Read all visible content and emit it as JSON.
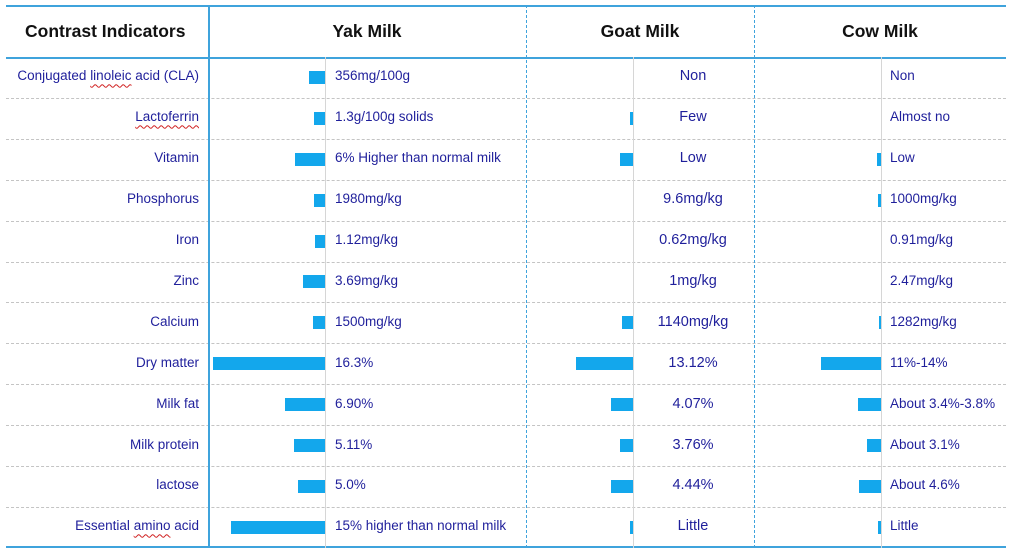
{
  "header": {
    "indicator": "Contrast Indicators",
    "yak": "Yak Milk",
    "goat": "Goat Milk",
    "cow": "Cow Milk"
  },
  "colors": {
    "bar": "#13a7ec",
    "border": "#3fa3dc",
    "text": "#1f1f9b"
  },
  "rows": [
    {
      "label": "Conjugated linoleic acid (CLA)",
      "underline": "linoleic",
      "yak": {
        "text": "356mg/100g",
        "bar": 0.14
      },
      "goat": {
        "text": "Non",
        "bar": 0
      },
      "cow": {
        "text": "Non",
        "bar": 0
      }
    },
    {
      "label": "Lactoferrin",
      "underline": "Lactoferrin",
      "yak": {
        "text": "1.3g/100g solids",
        "bar": 0.1
      },
      "goat": {
        "text": "Few",
        "bar": 0.05
      },
      "cow": {
        "text": "Almost no",
        "bar": 0
      }
    },
    {
      "label": "Vitamin",
      "underline": "",
      "yak": {
        "text": "6% Higher than normal milk",
        "bar": 0.27
      },
      "goat": {
        "text": "Low",
        "bar": 0.23
      },
      "cow": {
        "text": "Low",
        "bar": 0.07
      }
    },
    {
      "label": "Phosphorus",
      "underline": "",
      "yak": {
        "text": "1980mg/kg",
        "bar": 0.1
      },
      "goat": {
        "text": "9.6mg/kg",
        "bar": 0
      },
      "cow": {
        "text": "1000mg/kg",
        "bar": 0.05
      }
    },
    {
      "label": "Iron",
      "underline": "",
      "yak": {
        "text": "1.12mg/kg",
        "bar": 0.09
      },
      "goat": {
        "text": "0.62mg/kg",
        "bar": 0
      },
      "cow": {
        "text": "0.91mg/kg",
        "bar": 0
      }
    },
    {
      "label": "Zinc",
      "underline": "",
      "yak": {
        "text": "3.69mg/kg",
        "bar": 0.2
      },
      "goat": {
        "text": "1mg/kg",
        "bar": 0
      },
      "cow": {
        "text": "2.47mg/kg",
        "bar": 0
      }
    },
    {
      "label": "Calcium",
      "underline": "",
      "yak": {
        "text": "1500mg/kg",
        "bar": 0.11
      },
      "goat": {
        "text": "1140mg/kg",
        "bar": 0.19
      },
      "cow": {
        "text": "1282mg/kg",
        "bar": 0.02
      }
    },
    {
      "label": "Dry matter",
      "underline": "",
      "yak": {
        "text": "16.3%",
        "bar": 1.0
      },
      "goat": {
        "text": "13.12%",
        "bar": 1.0
      },
      "cow": {
        "text": "11%-14%",
        "bar": 1.0
      }
    },
    {
      "label": "Milk fat",
      "underline": "",
      "yak": {
        "text": "6.90%",
        "bar": 0.36
      },
      "goat": {
        "text": "4.07%",
        "bar": 0.38
      },
      "cow": {
        "text": "About 3.4%-3.8%",
        "bar": 0.38
      }
    },
    {
      "label": "Milk protein",
      "underline": "",
      "yak": {
        "text": "5.11%",
        "bar": 0.28
      },
      "goat": {
        "text": "3.76%",
        "bar": 0.23
      },
      "cow": {
        "text": "About 3.1%",
        "bar": 0.23
      }
    },
    {
      "label": "lactose",
      "underline": "",
      "yak": {
        "text": "5.0%",
        "bar": 0.24
      },
      "goat": {
        "text": "4.44%",
        "bar": 0.38
      },
      "cow": {
        "text": "About 4.6%",
        "bar": 0.36
      }
    },
    {
      "label": "Essential amino acid",
      "underline": "amino",
      "yak": {
        "text": "15% higher than normal milk",
        "bar": 0.84
      },
      "goat": {
        "text": "Little",
        "bar": 0.05
      },
      "cow": {
        "text": "Little",
        "bar": 0.05
      }
    }
  ]
}
